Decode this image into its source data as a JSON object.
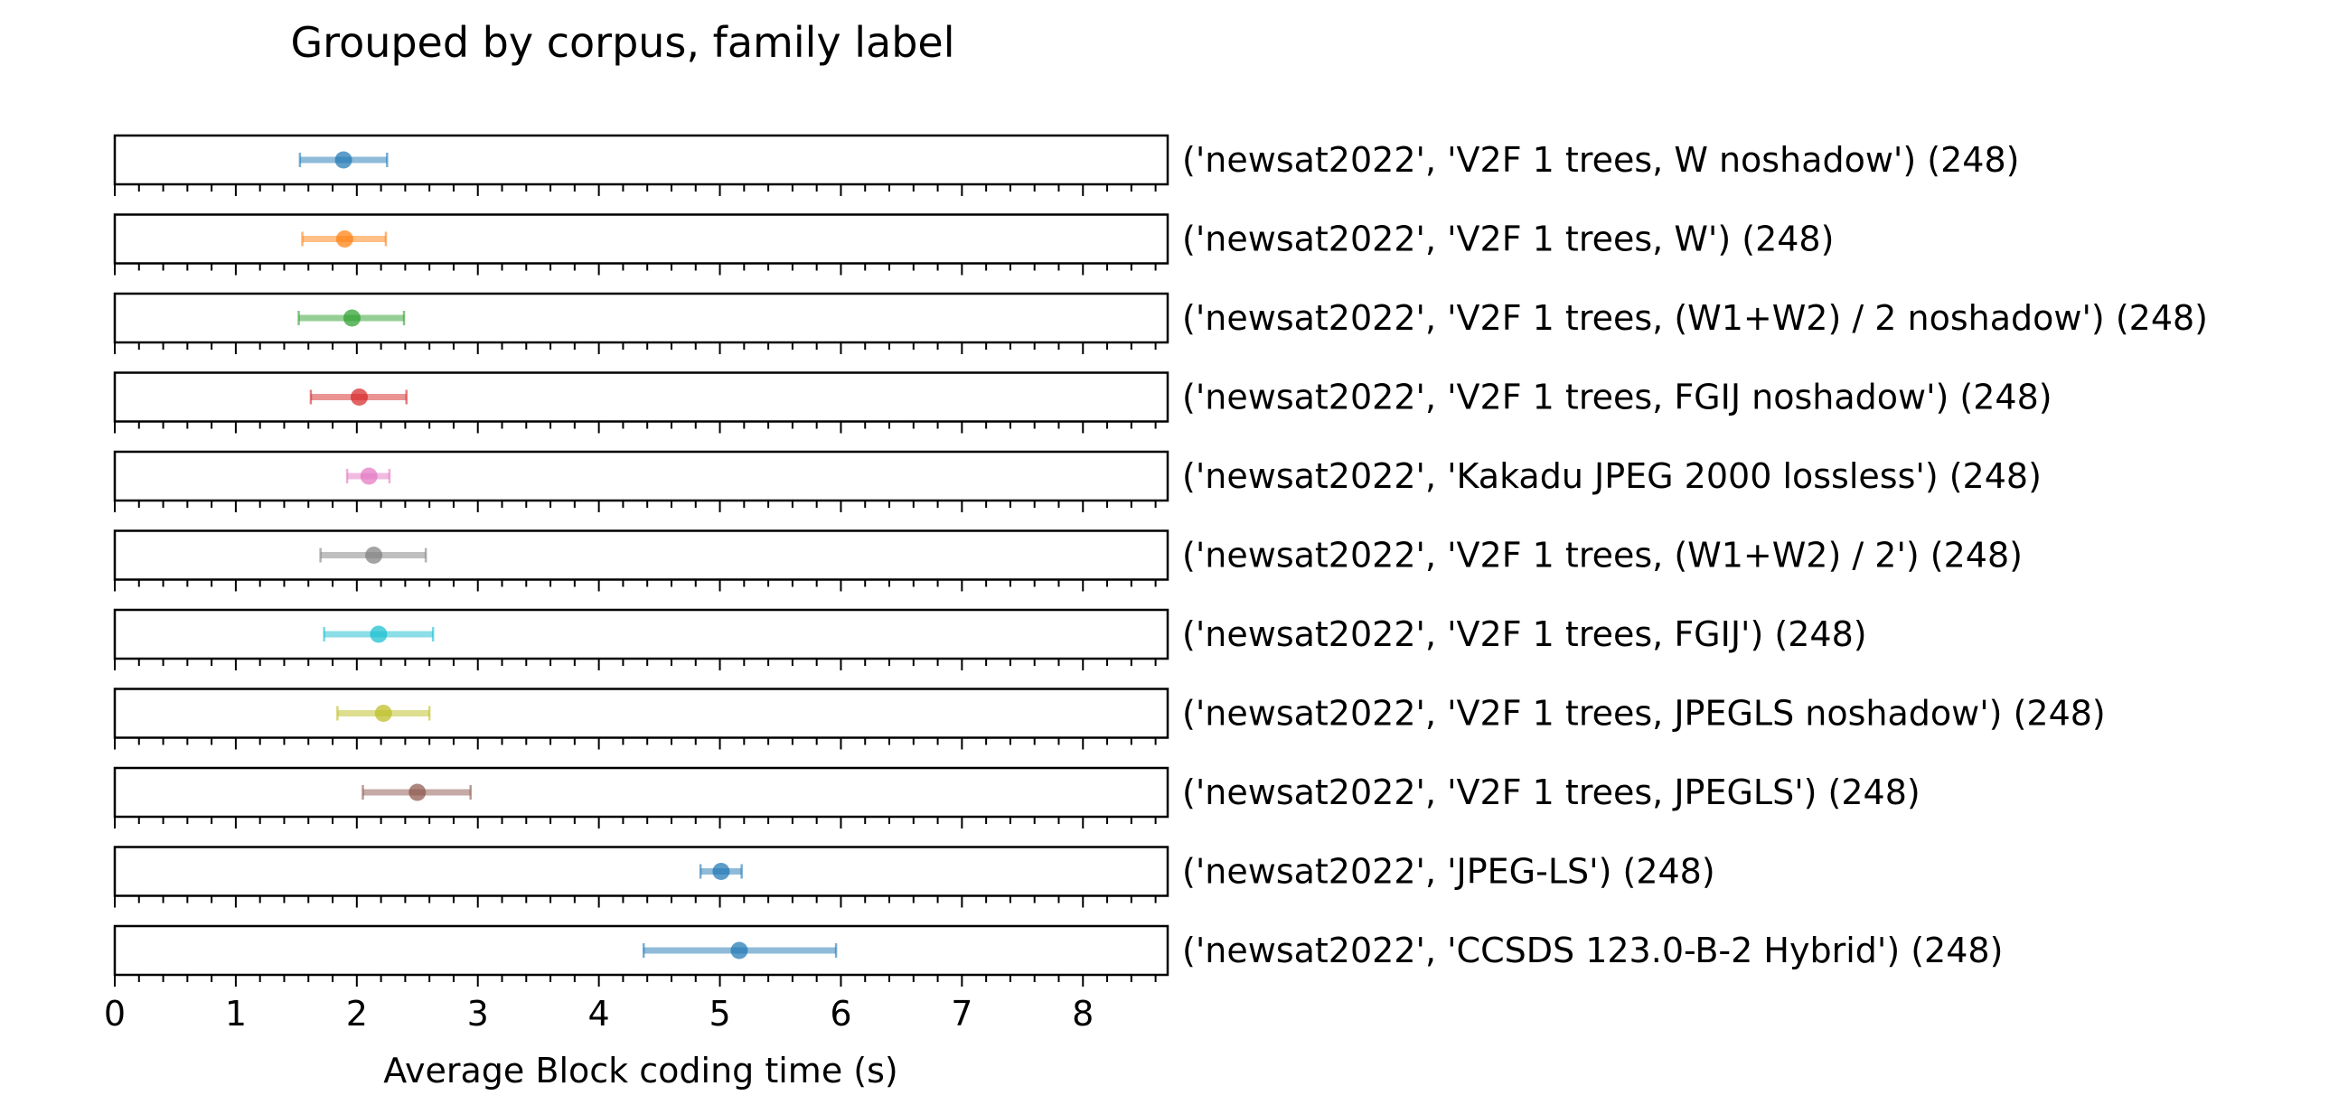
{
  "chart_data": {
    "type": "scatter",
    "title": "Grouped by corpus, family label",
    "xlabel": "Average Block coding time (s)",
    "xlim": [
      0,
      8.7
    ],
    "x_ticks": [
      "0",
      "1",
      "2",
      "3",
      "4",
      "5",
      "6",
      "7",
      "8"
    ],
    "minor_tick_step": 0.2,
    "rows": [
      {
        "label": "('newsat2022', 'V2F 1 trees, W noshadow') (248)",
        "mean": 1.89,
        "low": 1.53,
        "high": 2.25,
        "color": "#1f77b4"
      },
      {
        "label": "('newsat2022', 'V2F 1 trees, W') (248)",
        "mean": 1.9,
        "low": 1.55,
        "high": 2.24,
        "color": "#ff7f0e"
      },
      {
        "label": "('newsat2022', 'V2F 1 trees, (W1+W2) / 2 noshadow') (248)",
        "mean": 1.96,
        "low": 1.52,
        "high": 2.39,
        "color": "#2ca02c"
      },
      {
        "label": "('newsat2022', 'V2F 1 trees, FGIJ noshadow') (248)",
        "mean": 2.02,
        "low": 1.62,
        "high": 2.41,
        "color": "#d62728"
      },
      {
        "label": "('newsat2022', 'Kakadu JPEG 2000 lossless') (248)",
        "mean": 2.1,
        "low": 1.92,
        "high": 2.27,
        "color": "#e377c2"
      },
      {
        "label": "('newsat2022', 'V2F 1 trees, (W1+W2) / 2') (248)",
        "mean": 2.14,
        "low": 1.7,
        "high": 2.57,
        "color": "#7f7f7f"
      },
      {
        "label": "('newsat2022', 'V2F 1 trees, FGIJ') (248)",
        "mean": 2.18,
        "low": 1.73,
        "high": 2.63,
        "color": "#17becf"
      },
      {
        "label": "('newsat2022', 'V2F 1 trees, JPEGLS noshadow') (248)",
        "mean": 2.22,
        "low": 1.84,
        "high": 2.6,
        "color": "#bcbd22"
      },
      {
        "label": "('newsat2022', 'V2F 1 trees, JPEGLS') (248)",
        "mean": 2.5,
        "low": 2.05,
        "high": 2.94,
        "color": "#8c564b"
      },
      {
        "label": "('newsat2022', 'JPEG-LS') (248)",
        "mean": 5.01,
        "low": 4.84,
        "high": 5.18,
        "color": "#1f77b4"
      },
      {
        "label": "('newsat2022', 'CCSDS 123.0-B-2 Hybrid') (248)",
        "mean": 5.16,
        "low": 4.37,
        "high": 5.96,
        "color": "#1f77b4"
      }
    ]
  }
}
